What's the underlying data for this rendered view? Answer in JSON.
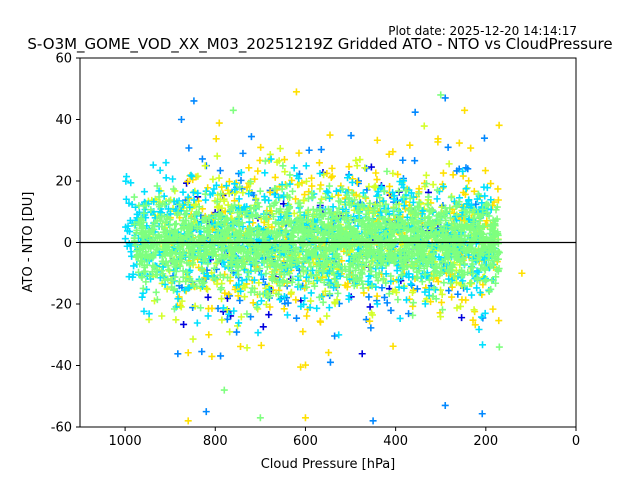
{
  "plot_date": "Plot date: 2025-12-20 14:14:17",
  "chart_data": {
    "type": "scatter",
    "title": "S-O3M_GOME_VOD_XX_M03_20251219Z Gridded ATO - NTO vs CloudPressure",
    "xlabel": "Cloud Pressure [hPa]",
    "ylabel": "ATO - NTO [DU]",
    "xlim": [
      1100,
      0
    ],
    "ylim": [
      -60,
      60
    ],
    "x_inverted": true,
    "xticks": [
      1000,
      800,
      600,
      400,
      200,
      0
    ],
    "yticks": [
      -60,
      -40,
      -20,
      0,
      20,
      40,
      60
    ],
    "reference_line_y": 0,
    "marker": "plus",
    "grid": false,
    "legend": "none",
    "colors": [
      "#0000dd",
      "#0088ff",
      "#00e0ff",
      "#7fff7f",
      "#d4ff2a",
      "#ffe000"
    ],
    "point_clusters": [
      {
        "color_index": 3,
        "x_range": [
          170,
          980
        ],
        "y_center": 0,
        "y_spread": 14,
        "density": "very high"
      },
      {
        "color_index": 2,
        "x_range": [
          180,
          1000
        ],
        "y_center": 0,
        "y_spread": 20,
        "density": "high"
      },
      {
        "color_index": 4,
        "x_range": [
          200,
          950
        ],
        "y_center": 0,
        "y_spread": 24,
        "density": "medium"
      },
      {
        "color_index": 5,
        "x_range": [
          170,
          900
        ],
        "y_center": 0,
        "y_spread": 28,
        "density": "medium"
      },
      {
        "color_index": 1,
        "x_range": [
          200,
          900
        ],
        "y_center": 0,
        "y_spread": 32,
        "density": "low"
      },
      {
        "color_index": 0,
        "x_range": [
          250,
          900
        ],
        "y_center": 0,
        "y_spread": 30,
        "density": "very low"
      }
    ],
    "outlier_points": [
      [
        875,
        40
      ],
      [
        760,
        43
      ],
      [
        620,
        49
      ],
      [
        290,
        47
      ],
      [
        300,
        48
      ],
      [
        860,
        -58
      ],
      [
        820,
        -55
      ],
      [
        700,
        -57
      ],
      [
        600,
        -57
      ],
      [
        450,
        -58
      ],
      [
        170,
        -34
      ],
      [
        120,
        -10
      ],
      [
        290,
        -53
      ],
      [
        780,
        -48
      ]
    ]
  }
}
